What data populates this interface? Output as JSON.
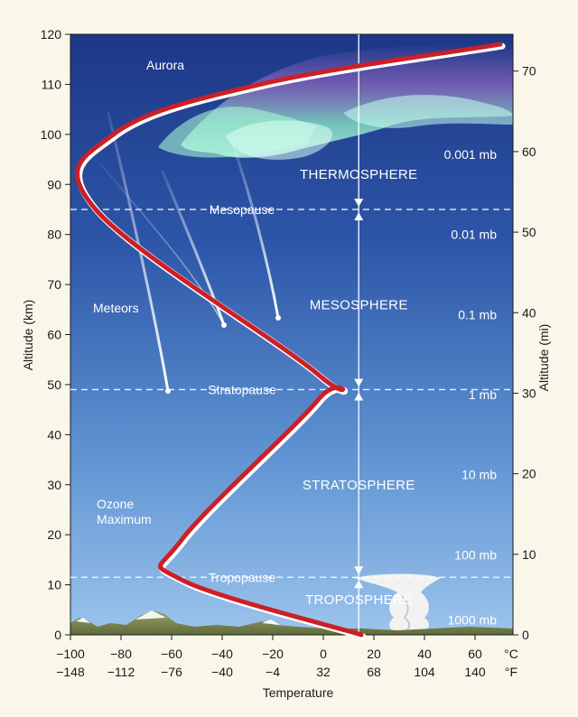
{
  "chart_data": {
    "type": "line",
    "xlabel": "Temperature",
    "ylabel_left": "Altitude (km)",
    "ylabel_right": "Altitude (mi)",
    "celsius_unit": "°C",
    "fahrenheit_unit": "°F",
    "celsius_ticks": [
      "−100",
      "−80",
      "−60",
      "−40",
      "−20",
      "0",
      "20",
      "40",
      "60"
    ],
    "fahrenheit_ticks": [
      "−148",
      "−112",
      "−76",
      "−40",
      "−4",
      "32",
      "68",
      "104",
      "140"
    ],
    "celsius_tick_values": [
      -100,
      -80,
      -60,
      -40,
      -20,
      0,
      20,
      40,
      60
    ],
    "km_ticks": [
      0,
      10,
      20,
      30,
      40,
      50,
      60,
      70,
      80,
      90,
      100,
      110,
      120
    ],
    "mi_ticks": [
      0,
      10,
      20,
      30,
      40,
      50,
      60,
      70
    ],
    "xlim_celsius": [
      -100,
      75
    ],
    "ylim_km": [
      0,
      120
    ],
    "temperature_profile": [
      {
        "temp_c": 15,
        "alt_km": 0
      },
      {
        "temp_c": -56,
        "alt_km": 11
      },
      {
        "temp_c": -56,
        "alt_km": 19
      },
      {
        "temp_c": -2,
        "alt_km": 47
      },
      {
        "temp_c": -2,
        "alt_km": 52
      },
      {
        "temp_c": -90,
        "alt_km": 85
      },
      {
        "temp_c": -83,
        "alt_km": 100
      },
      {
        "temp_c": -25,
        "alt_km": 110
      },
      {
        "temp_c": 70,
        "alt_km": 118
      }
    ],
    "boundaries": [
      {
        "name": "Tropopause",
        "alt_km": 11.5
      },
      {
        "name": "Stratopause",
        "alt_km": 49
      },
      {
        "name": "Mesopause",
        "alt_km": 85
      }
    ],
    "layers": [
      {
        "name": "TROPOSPHERE",
        "alt_km": 7
      },
      {
        "name": "STRATOSPHERE",
        "alt_km": 30
      },
      {
        "name": "MESOSPHERE",
        "alt_km": 66
      },
      {
        "name": "THERMOSPHERE",
        "alt_km": 92
      }
    ],
    "pressure_labels": [
      {
        "text": "1000 mb",
        "alt_km": 3
      },
      {
        "text": "100 mb",
        "alt_km": 16
      },
      {
        "text": "10 mb",
        "alt_km": 32
      },
      {
        "text": "1 mb",
        "alt_km": 48
      },
      {
        "text": "0.1 mb",
        "alt_km": 64
      },
      {
        "text": "0.01 mb",
        "alt_km": 80
      },
      {
        "text": "0.001 mb",
        "alt_km": 96
      }
    ],
    "annotations": {
      "aurora": "Aurora",
      "meteors": "Meteors",
      "ozone": [
        "Ozone",
        "Maximum"
      ]
    },
    "colors": {
      "profile": "#cc1f26",
      "sky_top": "#1f3a8c",
      "sky_bottom": "#8fbbe6",
      "aurora": "#9ff0cf",
      "background": "#fbf6ea"
    }
  }
}
